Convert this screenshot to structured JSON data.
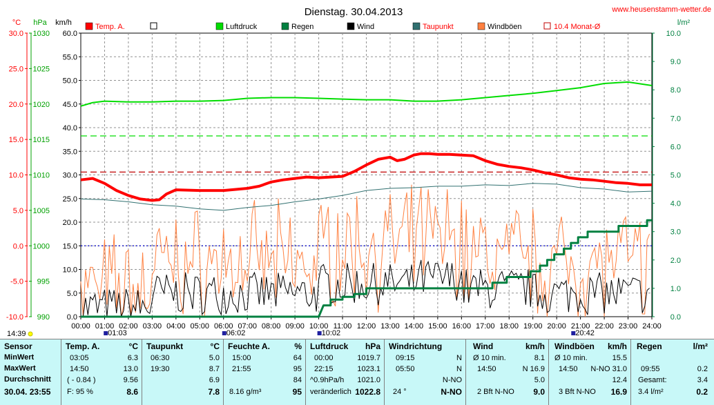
{
  "colors": {
    "temp": "#ff0000",
    "pressure": "#00dd00",
    "rain": "#008040",
    "wind": "#000000",
    "dewpoint": "#307070",
    "gust": "#ff8040",
    "monthavg": "#c00000",
    "zero_line": "#0000cc",
    "axis_temp": "#ff0000",
    "axis_pressure": "#00a000",
    "axis_rain": "#008040",
    "table_bg": "#c8f8f8"
  },
  "chart_data": {
    "type": "line",
    "title": "Dienstag. 30.04.2013",
    "website": "www.heusenstamm-wetter.de",
    "units": {
      "temp": "°C",
      "pressure": "hPa",
      "wind": "km/h",
      "rain": "l/m²"
    },
    "axes": {
      "temp": {
        "range": [
          -10,
          30
        ],
        "ticks": [
          "30.0",
          "25.0",
          "20.0",
          "15.0",
          "10.0",
          "5.0",
          "0.0",
          "-5.0",
          "-10.0"
        ]
      },
      "pressure": {
        "range": [
          990,
          1030
        ],
        "ticks": [
          "1030",
          "1025",
          "1020",
          "1015",
          "1010",
          "1005",
          "1000",
          "995",
          "990"
        ]
      },
      "wind": {
        "range": [
          0,
          60
        ],
        "ticks": [
          "60.0",
          "55.0",
          "50.0",
          "45.0",
          "40.0",
          "35.0",
          "30.0",
          "25.0",
          "20.0",
          "15.0",
          "10.0",
          "5.0",
          "0.0"
        ]
      },
      "rain": {
        "range": [
          0,
          10
        ],
        "ticks": [
          "10.0",
          "9.0",
          "8.0",
          "7.0",
          "6.0",
          "5.0",
          "4.0",
          "3.0",
          "2.0",
          "1.0",
          "0.0"
        ]
      },
      "x": {
        "range": [
          0,
          24
        ],
        "ticks": [
          "00:00",
          "01:00",
          "02:00",
          "03:00",
          "04:00",
          "05:00",
          "06:00",
          "07:00",
          "08:00",
          "09:00",
          "10:00",
          "11:00",
          "12:00",
          "13:00",
          "14:00",
          "15:00",
          "16:00",
          "17:00",
          "18:00",
          "19:00",
          "20:00",
          "21:00",
          "22:00",
          "23:00",
          "24:00"
        ]
      }
    },
    "legend": [
      {
        "label": "Temp. A.",
        "color": "#ff0000",
        "style": "filled"
      },
      {
        "label": "",
        "color": "#000000",
        "style": "empty"
      },
      {
        "label": "Luftdruck",
        "color": "#00dd00",
        "style": "filled"
      },
      {
        "label": "Regen",
        "color": "#008040",
        "style": "filled"
      },
      {
        "label": "Wind",
        "color": "#000000",
        "style": "filled"
      },
      {
        "label": "Taupunkt",
        "color": "#307070",
        "style": "filled"
      },
      {
        "label": "Windböen",
        "color": "#ff8040",
        "style": "filled"
      },
      {
        "label": "10.4 Monat-Ø",
        "color": "#c00000",
        "style": "empty"
      }
    ],
    "reference_lines": [
      {
        "axis": "temp",
        "value": 10.4,
        "color": "#c00000",
        "style": "dashed"
      },
      {
        "axis": "temp",
        "value": 0,
        "color": "#0000cc",
        "style": "dotted"
      },
      {
        "axis": "pressure",
        "value": 1015.5,
        "color": "#00dd00",
        "style": "dashed"
      }
    ],
    "events": [
      {
        "time": "14:39",
        "hour": 14.65
      },
      {
        "time": "01:03",
        "hour": 1.05
      },
      {
        "time": "06:02",
        "hour": 6.03
      },
      {
        "time": "10:02",
        "hour": 10.03
      },
      {
        "time": "20:42",
        "hour": 20.7
      }
    ],
    "series": [
      {
        "name": "Temp. A.",
        "axis": "temp",
        "color": "#ff0000",
        "width": 4,
        "x": [
          0,
          0.5,
          1,
          1.5,
          2,
          2.5,
          3,
          3.3,
          3.6,
          4,
          5,
          6,
          7,
          7.5,
          8,
          8.5,
          9,
          9.5,
          10,
          10.5,
          11,
          11.5,
          12,
          12.5,
          13,
          13.3,
          13.6,
          14,
          14.3,
          14.65,
          15,
          15.5,
          16,
          16.5,
          17,
          17.5,
          18,
          18.5,
          19,
          19.5,
          20,
          20.5,
          21,
          21.5,
          22,
          22.5,
          23,
          23.5,
          24
        ],
        "y": [
          9.3,
          9.5,
          8.8,
          7.8,
          7.1,
          6.6,
          6.4,
          6.5,
          7.3,
          7.9,
          7.8,
          7.8,
          8.1,
          8.4,
          9.0,
          9.3,
          9.5,
          9.7,
          9.6,
          9.7,
          9.8,
          10.5,
          11.4,
          12.2,
          12.5,
          12.0,
          12.2,
          12.8,
          13.0,
          13.0,
          12.9,
          12.9,
          12.8,
          12.7,
          12.0,
          11.5,
          11.2,
          11.0,
          10.7,
          10.3,
          10.0,
          9.6,
          9.4,
          9.3,
          9.1,
          8.9,
          8.8,
          8.6,
          8.6
        ]
      },
      {
        "name": "Luftdruck",
        "axis": "pressure",
        "color": "#00dd00",
        "width": 2,
        "x": [
          0,
          0.5,
          1,
          2,
          3,
          4,
          5,
          6,
          7,
          8,
          9,
          10,
          11,
          12,
          13,
          14,
          15,
          16,
          17,
          18,
          19,
          20,
          21,
          22,
          23,
          24
        ],
        "y": [
          1019.7,
          1020.2,
          1020.4,
          1020.3,
          1020.3,
          1020.4,
          1020.4,
          1020.5,
          1020.8,
          1020.9,
          1020.9,
          1020.8,
          1020.7,
          1020.6,
          1020.6,
          1020.4,
          1020.4,
          1020.6,
          1020.9,
          1021.2,
          1021.5,
          1021.9,
          1022.3,
          1022.9,
          1023.1,
          1022.6
        ]
      },
      {
        "name": "Taupunkt",
        "axis": "temp",
        "color": "#307070",
        "width": 1,
        "x": [
          0,
          1,
          2,
          3,
          4,
          5,
          6,
          7,
          8,
          9,
          10,
          11,
          12,
          13,
          14,
          15,
          16,
          17,
          18,
          19,
          20,
          21,
          22,
          23,
          24
        ],
        "y": [
          6.6,
          6.5,
          6.2,
          5.8,
          5.6,
          5.2,
          5.0,
          5.4,
          5.7,
          6.2,
          6.6,
          7.1,
          7.8,
          8.1,
          8.2,
          8.4,
          8.4,
          8.6,
          8.5,
          8.8,
          8.7,
          8.2,
          8.0,
          7.6,
          7.7
        ]
      },
      {
        "name": "Regen",
        "axis": "rain",
        "color": "#008040",
        "width": 3,
        "x": [
          0,
          10.0,
          10.2,
          10.5,
          10.5,
          11.0,
          11.0,
          11.5,
          11.5,
          12.0,
          12.0,
          17.3,
          17.3,
          17.9,
          17.9,
          18.9,
          18.9,
          19.3,
          19.3,
          19.6,
          19.6,
          19.9,
          19.9,
          20.3,
          20.3,
          20.6,
          20.6,
          20.9,
          20.9,
          21.3,
          21.3,
          22.6,
          22.6,
          23.8,
          23.8,
          24
        ],
        "y": [
          0,
          0,
          0.4,
          0.4,
          0.6,
          0.6,
          0.7,
          0.7,
          0.8,
          0.8,
          1.0,
          1.0,
          1.2,
          1.2,
          1.4,
          1.4,
          1.6,
          1.6,
          1.8,
          1.8,
          2.0,
          2.0,
          2.2,
          2.2,
          2.4,
          2.4,
          2.6,
          2.6,
          2.8,
          2.8,
          3.0,
          3.0,
          3.2,
          3.2,
          3.4,
          3.4
        ]
      }
    ]
  },
  "table": {
    "sensor": {
      "header": "Sensor",
      "rows": [
        "MinWert",
        "MaxWert",
        "Durchschnitt",
        "30.04.  23:55"
      ]
    },
    "temp": {
      "header": "Temp. A.",
      "unit": "°C",
      "rows": [
        [
          "03:05",
          "6.3"
        ],
        [
          "14:50",
          "13.0"
        ],
        [
          "( - 0.84 )",
          "9.56"
        ],
        [
          "F: 95 %",
          "8.6"
        ]
      ]
    },
    "dew": {
      "header": "Taupunkt",
      "unit": "°C",
      "rows": [
        [
          "06:30",
          "5.0"
        ],
        [
          "19:30",
          "8.7"
        ],
        [
          "",
          "6.9"
        ],
        [
          "",
          "7.8"
        ]
      ]
    },
    "humidity": {
      "header": "Feuchte A.",
      "unit": "%",
      "rows": [
        [
          "15:00",
          "64"
        ],
        [
          "21:55",
          "95"
        ],
        [
          "",
          "84"
        ],
        [
          "8.16 g/m³",
          "95"
        ]
      ]
    },
    "pressure": {
      "header": "Luftdruck",
      "unit": "hPa",
      "rows": [
        [
          "00:00",
          "1019.7"
        ],
        [
          "22:15",
          "1023.1"
        ],
        [
          "^0.9hPa/h",
          "1021.0"
        ],
        [
          "veränderlich",
          "1022.8"
        ]
      ]
    },
    "winddir": {
      "header": "Windrichtung",
      "unit": "",
      "rows": [
        [
          "09:15",
          "N"
        ],
        [
          "05:50",
          "N"
        ],
        [
          "",
          "N-NO"
        ],
        [
          "24 °",
          "N-NO"
        ]
      ]
    },
    "wind": {
      "header": "Wind",
      "unit": "km/h",
      "rows": [
        [
          "Ø 10 min.",
          "8.1"
        ],
        [
          "14:50",
          "N 16.9"
        ],
        [
          "",
          "5.0"
        ],
        [
          "2 Bft N-NO",
          "9.0"
        ]
      ]
    },
    "gust": {
      "header": "Windböen",
      "unit": "km/h",
      "rows": [
        [
          "Ø 10 min.",
          "15.5"
        ],
        [
          "14:50",
          "N-NO 31.0"
        ],
        [
          "",
          "12.4"
        ],
        [
          "3 Bft N-NO",
          "16.9"
        ]
      ]
    },
    "rain": {
      "header": "Regen",
      "unit": "l/m²",
      "rows": [
        [
          "",
          ""
        ],
        [
          "09:55",
          "0.2"
        ],
        [
          "Gesamt:",
          "3.4"
        ],
        [
          "3.4 l/m²",
          "0.2"
        ]
      ]
    }
  }
}
